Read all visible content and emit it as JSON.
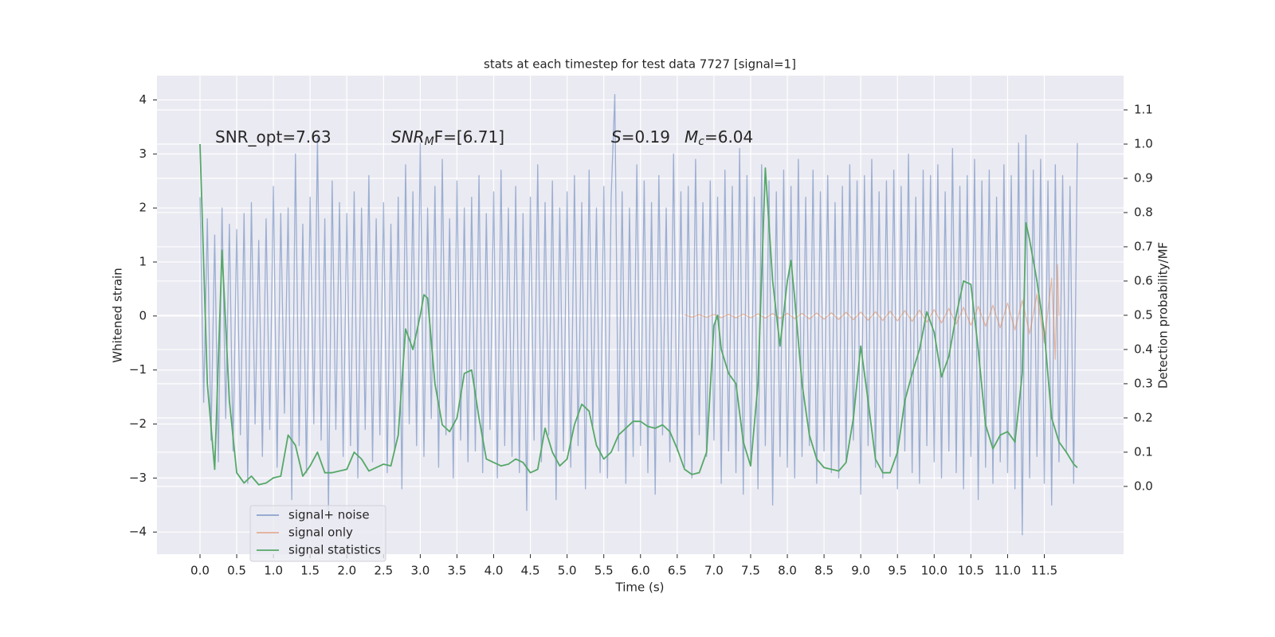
{
  "chart_data": {
    "type": "line",
    "title": "stats at each timestep for test data 7727 [signal=1]",
    "xlabel": "Time (s)",
    "ylabel": "Whitened strain",
    "y2label": "Detection probability/MF",
    "annotations": [
      {
        "text": "SNR_opt=7.63"
      },
      {
        "base": "SNR",
        "sub": "M",
        "rest": "F=[6.71]"
      },
      {
        "base": "S",
        "rest": "=0.19"
      },
      {
        "base": "M",
        "sub": "c",
        "rest": "=6.04"
      }
    ],
    "xlim": [
      -0.586,
      12.58
    ],
    "ylim": [
      -4.41,
      4.45
    ],
    "y2lim": [
      -0.198,
      1.2
    ],
    "xticks": [
      {
        "value": 0,
        "label": "0.0"
      },
      0.5,
      {
        "value": 1,
        "label": "1.0"
      },
      1.5,
      {
        "value": 2,
        "label": "2.0"
      },
      2.5,
      {
        "value": 3,
        "label": "3.0"
      },
      3.5,
      {
        "value": 4,
        "label": "4.0"
      },
      4.5,
      {
        "value": 5,
        "label": "5.0"
      },
      5.5,
      {
        "value": 6,
        "label": "6.0"
      },
      6.5,
      {
        "value": 7,
        "label": "7.0"
      },
      7.5,
      {
        "value": 8,
        "label": "8.0"
      },
      8.5,
      {
        "value": 9,
        "label": "9.0"
      },
      9.5,
      {
        "value": 10,
        "label": "10.0"
      },
      10.5,
      {
        "value": 11,
        "label": "11.0"
      },
      11.5
    ],
    "yticks": [
      {
        "value": -4,
        "label": "−4"
      },
      {
        "value": -3,
        "label": "−3"
      },
      {
        "value": -2,
        "label": "−2"
      },
      {
        "value": -1,
        "label": "−1"
      },
      0,
      1,
      2,
      3,
      4
    ],
    "y2ticks": [
      {
        "value": 0,
        "label": "0.0"
      },
      0.1,
      0.2,
      0.3,
      0.4,
      0.5,
      0.6,
      0.7,
      0.8,
      0.9,
      {
        "value": 1,
        "label": "1.0"
      },
      1.1
    ],
    "grid": true,
    "legend": "lower left",
    "series": [
      {
        "name": "signal+ noise",
        "color": "#4c72b0",
        "x": [
          0,
          0.05,
          0.1,
          0.15,
          0.2,
          0.25,
          0.3,
          0.35,
          0.4,
          0.45,
          0.5,
          0.55,
          0.6,
          0.65,
          0.7,
          0.75,
          0.8,
          0.85,
          0.9,
          0.95,
          1,
          1.05,
          1.1,
          1.15,
          1.2,
          1.25,
          1.3,
          1.35,
          1.4,
          1.45,
          1.5,
          1.55,
          1.6,
          1.65,
          1.7,
          1.75,
          1.8,
          1.85,
          1.9,
          1.95,
          2,
          2.05,
          2.1,
          2.15,
          2.2,
          2.25,
          2.3,
          2.35,
          2.4,
          2.45,
          2.5,
          2.55,
          2.6,
          2.65,
          2.7,
          2.75,
          2.8,
          2.85,
          2.9,
          2.95,
          3,
          3.05,
          3.1,
          3.15,
          3.2,
          3.25,
          3.3,
          3.35,
          3.4,
          3.45,
          3.5,
          3.55,
          3.6,
          3.65,
          3.7,
          3.75,
          3.8,
          3.85,
          3.9,
          3.95,
          4,
          4.05,
          4.1,
          4.15,
          4.2,
          4.25,
          4.3,
          4.35,
          4.4,
          4.45,
          4.5,
          4.55,
          4.6,
          4.65,
          4.7,
          4.75,
          4.8,
          4.85,
          4.9,
          4.95,
          5,
          5.05,
          5.1,
          5.15,
          5.2,
          5.25,
          5.3,
          5.35,
          5.4,
          5.45,
          5.5,
          5.55,
          5.6,
          5.65,
          5.7,
          5.75,
          5.8,
          5.85,
          5.9,
          5.95,
          6,
          6.05,
          6.1,
          6.15,
          6.2,
          6.25,
          6.3,
          6.35,
          6.4,
          6.45,
          6.5,
          6.55,
          6.6,
          6.65,
          6.7,
          6.75,
          6.8,
          6.85,
          6.9,
          6.95,
          7,
          7.05,
          7.1,
          7.15,
          7.2,
          7.25,
          7.3,
          7.35,
          7.4,
          7.45,
          7.5,
          7.55,
          7.6,
          7.65,
          7.7,
          7.75,
          7.8,
          7.85,
          7.9,
          7.95,
          8,
          8.05,
          8.1,
          8.15,
          8.2,
          8.25,
          8.3,
          8.35,
          8.4,
          8.45,
          8.5,
          8.55,
          8.6,
          8.65,
          8.7,
          8.75,
          8.8,
          8.85,
          8.9,
          8.95,
          9,
          9.05,
          9.1,
          9.15,
          9.2,
          9.25,
          9.3,
          9.35,
          9.4,
          9.45,
          9.5,
          9.55,
          9.6,
          9.65,
          9.7,
          9.75,
          9.8,
          9.85,
          9.9,
          9.95,
          10,
          10.05,
          10.1,
          10.15,
          10.2,
          10.25,
          10.3,
          10.35,
          10.4,
          10.45,
          10.5,
          10.55,
          10.6,
          10.65,
          10.7,
          10.75,
          10.8,
          10.85,
          10.9,
          10.95,
          11,
          11.05,
          11.1,
          11.15,
          11.2,
          11.25,
          11.3,
          11.35,
          11.4,
          11.45,
          11.5,
          11.55,
          11.6,
          11.65,
          11.7,
          11.75,
          11.8,
          11.85,
          11.9,
          11.95
        ],
        "values": [
          2.2,
          -1.6,
          1.8,
          -2.3,
          1.5,
          -2.7,
          2.0,
          -1.9,
          1.7,
          -2.5,
          1.6,
          -2.2,
          1.9,
          -3.1,
          2.1,
          -2.0,
          1.4,
          -2.6,
          1.8,
          -2.1,
          2.4,
          -2.8,
          1.9,
          -1.8,
          2.0,
          -3.4,
          3.0,
          -2.4,
          1.7,
          -2.9,
          2.2,
          -2.0,
          3.3,
          -2.3,
          1.8,
          -3.6,
          2.5,
          -2.1,
          2.1,
          -2.6,
          1.9,
          -2.4,
          2.3,
          -3.0,
          2.0,
          -2.1,
          2.6,
          -2.7,
          1.8,
          -2.2,
          2.1,
          -2.9,
          1.7,
          -2.5,
          2.2,
          -3.2,
          2.8,
          -2.0,
          2.3,
          -2.4,
          3.2,
          -2.6,
          2.0,
          -1.9,
          2.4,
          -2.8,
          2.9,
          -2.2,
          1.8,
          -3.0,
          2.5,
          -2.3,
          2.0,
          -2.7,
          2.2,
          -2.5,
          2.6,
          -2.9,
          1.9,
          -2.1,
          2.3,
          -3.0,
          2.7,
          -2.4,
          2.0,
          -2.6,
          2.4,
          -2.9,
          1.9,
          -3.6,
          2.2,
          -2.3,
          2.8,
          -2.7,
          2.1,
          -2.2,
          2.5,
          -3.4,
          2.0,
          -2.5,
          2.3,
          -2.8,
          2.6,
          -2.4,
          2.1,
          -3.2,
          2.7,
          -2.1,
          2.0,
          -2.9,
          2.4,
          -3.0,
          2.2,
          4.1,
          -2.5,
          2.3,
          -3.1,
          2.0,
          -2.6,
          2.8,
          -2.4,
          2.5,
          -2.9,
          2.1,
          -3.3,
          2.6,
          -2.2,
          2.0,
          -2.7,
          3.0,
          -2.5,
          2.3,
          -2.8,
          2.4,
          -3.0,
          2.9,
          -2.2,
          2.1,
          -2.6,
          2.5,
          -2.3,
          2.2,
          -3.1,
          2.7,
          -2.5,
          2.4,
          -2.9,
          3.1,
          -3.3,
          2.6,
          -2.7,
          2.2,
          -3.2,
          2.8,
          -2.4,
          2.5,
          -3.5,
          2.3,
          -2.6,
          2.7,
          -2.8,
          2.4,
          -3.0,
          2.9,
          -2.6,
          2.2,
          -2.4,
          2.7,
          -3.1,
          2.3,
          -2.5,
          2.6,
          -2.9,
          2.1,
          -3.0,
          2.4,
          -2.7,
          2.8,
          -2.3,
          2.5,
          -3.3,
          2.6,
          -2.4,
          2.9,
          -2.8,
          2.3,
          -3.0,
          2.5,
          -2.6,
          2.7,
          -3.2,
          2.4,
          -2.5,
          3.0,
          -2.9,
          2.2,
          -3.1,
          2.7,
          -2.4,
          2.6,
          -2.7,
          2.8,
          -3.0,
          2.3,
          -2.5,
          3.1,
          -2.9,
          2.4,
          -3.2,
          2.6,
          -2.6,
          2.9,
          -3.4,
          2.5,
          -2.8,
          2.7,
          -3.1,
          2.2,
          -2.7,
          2.8,
          -2.9,
          2.6,
          -3.2,
          3.2,
          -4.05,
          3.35,
          -3.0,
          2.7,
          -2.6,
          2.9,
          -3.1,
          2.5,
          -3.5,
          2.8,
          -2.7,
          2.6,
          -2.5,
          2.4,
          -3.1,
          3.2
        ]
      },
      {
        "name": "signal only",
        "color": "#dd8452",
        "x": [
          6.6,
          6.7,
          6.8,
          6.9,
          7.0,
          7.1,
          7.2,
          7.3,
          7.4,
          7.5,
          7.6,
          7.7,
          7.8,
          7.9,
          8.0,
          8.1,
          8.2,
          8.3,
          8.4,
          8.5,
          8.6,
          8.7,
          8.8,
          8.9,
          9.0,
          9.1,
          9.2,
          9.3,
          9.4,
          9.5,
          9.6,
          9.7,
          9.8,
          9.9,
          10.0,
          10.1,
          10.2,
          10.3,
          10.4,
          10.5,
          10.6,
          10.7,
          10.8,
          10.9,
          11.0,
          11.1,
          11.2,
          11.3,
          11.4,
          11.5,
          11.6,
          11.65,
          11.68,
          11.7
        ],
        "values": [
          0.02,
          -0.02,
          0.025,
          -0.025,
          0.03,
          -0.03,
          0.03,
          -0.035,
          0.035,
          -0.035,
          0.04,
          -0.04,
          0.045,
          -0.045,
          0.05,
          -0.05,
          0.05,
          -0.055,
          0.055,
          -0.06,
          0.06,
          -0.065,
          0.07,
          -0.07,
          0.075,
          -0.08,
          0.08,
          -0.085,
          0.09,
          -0.09,
          0.1,
          -0.1,
          0.11,
          -0.115,
          0.12,
          -0.13,
          0.14,
          -0.15,
          0.16,
          -0.17,
          0.18,
          -0.19,
          0.2,
          -0.22,
          0.24,
          -0.26,
          0.29,
          -0.33,
          0.4,
          -0.5,
          0.7,
          -0.8,
          0.95,
          0
        ]
      },
      {
        "name": "signal statistics",
        "color": "#55a868",
        "axis": "y2",
        "x": [
          0,
          0.1,
          0.2,
          0.3,
          0.4,
          0.5,
          0.6,
          0.7,
          0.8,
          0.9,
          1.0,
          1.1,
          1.2,
          1.3,
          1.4,
          1.5,
          1.6,
          1.7,
          1.8,
          1.9,
          2.0,
          2.1,
          2.2,
          2.3,
          2.4,
          2.5,
          2.6,
          2.7,
          2.8,
          2.9,
          3.0,
          3.05,
          3.1,
          3.2,
          3.3,
          3.4,
          3.5,
          3.6,
          3.7,
          3.8,
          3.9,
          4.0,
          4.1,
          4.2,
          4.3,
          4.4,
          4.5,
          4.6,
          4.7,
          4.8,
          4.9,
          5.0,
          5.1,
          5.2,
          5.3,
          5.4,
          5.5,
          5.6,
          5.7,
          5.8,
          5.9,
          6.0,
          6.1,
          6.2,
          6.3,
          6.4,
          6.5,
          6.6,
          6.7,
          6.8,
          6.9,
          7.0,
          7.05,
          7.1,
          7.2,
          7.3,
          7.4,
          7.5,
          7.6,
          7.7,
          7.8,
          7.9,
          8.0,
          8.05,
          8.1,
          8.2,
          8.3,
          8.4,
          8.5,
          8.6,
          8.7,
          8.8,
          8.9,
          9.0,
          9.1,
          9.2,
          9.3,
          9.4,
          9.5,
          9.6,
          9.7,
          9.8,
          9.9,
          10.0,
          10.1,
          10.2,
          10.3,
          10.4,
          10.5,
          10.6,
          10.7,
          10.8,
          10.9,
          11.0,
          11.1,
          11.2,
          11.25,
          11.3,
          11.4,
          11.5,
          11.6,
          11.7,
          11.8,
          11.9,
          11.95
        ],
        "values": [
          1.0,
          0.3,
          0.05,
          0.69,
          0.25,
          0.04,
          0.01,
          0.03,
          0.005,
          0.01,
          0.025,
          0.03,
          0.15,
          0.12,
          0.03,
          0.06,
          0.1,
          0.04,
          0.04,
          0.045,
          0.05,
          0.1,
          0.08,
          0.045,
          0.055,
          0.065,
          0.06,
          0.15,
          0.46,
          0.4,
          0.5,
          0.56,
          0.55,
          0.3,
          0.18,
          0.16,
          0.2,
          0.33,
          0.34,
          0.2,
          0.08,
          0.07,
          0.06,
          0.065,
          0.08,
          0.07,
          0.04,
          0.05,
          0.17,
          0.1,
          0.06,
          0.08,
          0.18,
          0.24,
          0.22,
          0.12,
          0.08,
          0.1,
          0.15,
          0.17,
          0.19,
          0.19,
          0.175,
          0.17,
          0.18,
          0.16,
          0.11,
          0.05,
          0.035,
          0.04,
          0.1,
          0.47,
          0.5,
          0.4,
          0.33,
          0.3,
          0.13,
          0.06,
          0.3,
          0.93,
          0.6,
          0.41,
          0.6,
          0.66,
          0.55,
          0.3,
          0.15,
          0.08,
          0.055,
          0.05,
          0.045,
          0.07,
          0.2,
          0.41,
          0.25,
          0.08,
          0.04,
          0.04,
          0.1,
          0.25,
          0.33,
          0.4,
          0.51,
          0.45,
          0.32,
          0.38,
          0.5,
          0.6,
          0.59,
          0.4,
          0.18,
          0.11,
          0.15,
          0.16,
          0.13,
          0.33,
          0.77,
          0.72,
          0.6,
          0.45,
          0.2,
          0.13,
          0.1,
          0.065,
          0.055
        ]
      }
    ]
  }
}
